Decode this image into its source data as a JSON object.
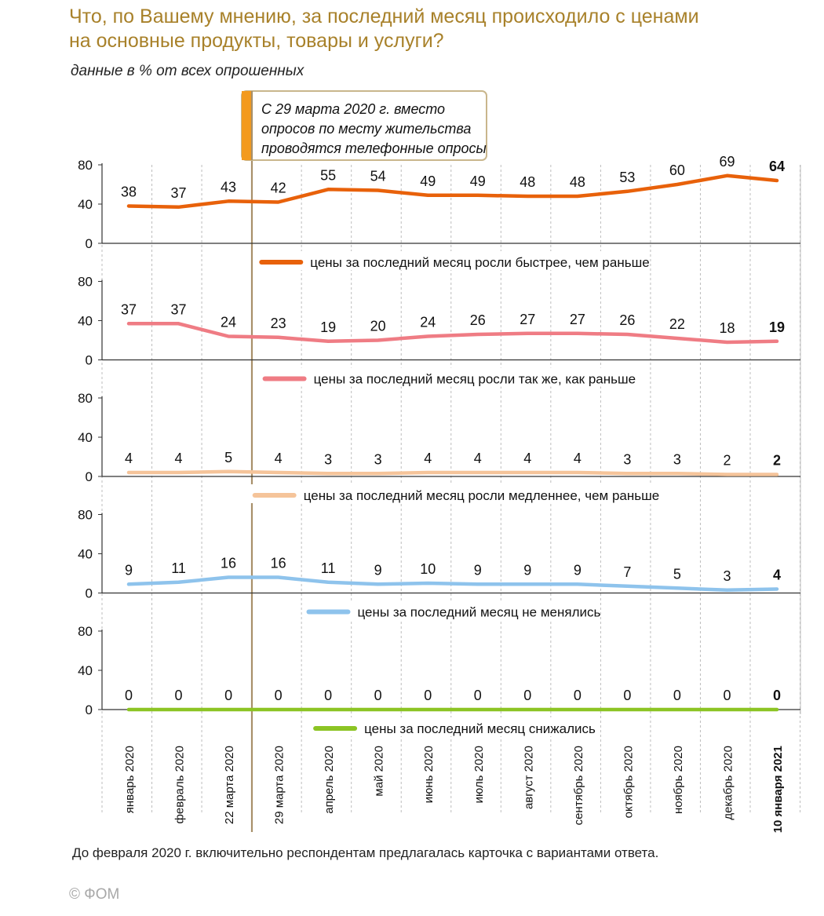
{
  "header": {
    "title_line1": "Что, по Вашему мнению, за последний месяц происходило с ценами",
    "title_line2": "на основные продукты, товары и услуги?",
    "subtitle": "данные в % от всех опрошенных"
  },
  "annotation": {
    "line1": "С 29 марта 2020 г. вместо",
    "line2": "опросов по месту жительства",
    "line3": "проводятся телефонные опросы"
  },
  "footer": {
    "note": "До февраля 2020 г. включительно респондентам предлагалась карточка с вариантами ответа.",
    "copyright": "© ФОМ"
  },
  "chart_data": {
    "type": "line",
    "categories": [
      "январь 2020",
      "февраль 2020",
      "22 марта 2020",
      "29 марта 2020",
      "апрель 2020",
      "май 2020",
      "июнь 2020",
      "июль 2020",
      "август 2020",
      "сентябрь 2020",
      "октябрь 2020",
      "ноябрь 2020",
      "декабрь 2020",
      "10 января 2021"
    ],
    "bold_category": "10 января 2021",
    "ylim": [
      0,
      80
    ],
    "yticks": [
      "80",
      "40",
      "0"
    ],
    "layout": "small multiples, one panel per series, shared x axis",
    "series": [
      {
        "name": "цены за последний месяц росли быстрее, чем раньше",
        "color": "#e8610a",
        "values": [
          38,
          37,
          43,
          42,
          55,
          54,
          49,
          49,
          48,
          48,
          53,
          60,
          69,
          64
        ]
      },
      {
        "name": "цены за последний месяц росли так же, как раньше",
        "color": "#ef7c84",
        "values": [
          37,
          37,
          24,
          23,
          19,
          20,
          24,
          26,
          27,
          27,
          26,
          22,
          18,
          19
        ]
      },
      {
        "name": "цены за последний месяц росли медленнее, чем раньше",
        "color": "#f5c49a",
        "values": [
          4,
          4,
          5,
          4,
          3,
          3,
          4,
          4,
          4,
          4,
          3,
          3,
          2,
          2
        ]
      },
      {
        "name": "цены за последний месяц не менялись",
        "color": "#8ec3ec",
        "values": [
          9,
          11,
          16,
          16,
          11,
          9,
          10,
          9,
          9,
          9,
          7,
          5,
          3,
          4
        ]
      },
      {
        "name": "цены за последний месяц снижались",
        "color": "#8cc424",
        "values": [
          0,
          0,
          0,
          0,
          0,
          0,
          0,
          0,
          0,
          0,
          0,
          0,
          0,
          0
        ]
      }
    ],
    "methodology_break": "between 22 марта 2020 and 29 марта 2020",
    "break_line_color": "#a8906a",
    "annotation_accent_color": "#f39a1e",
    "grid": "vertical dashed"
  }
}
